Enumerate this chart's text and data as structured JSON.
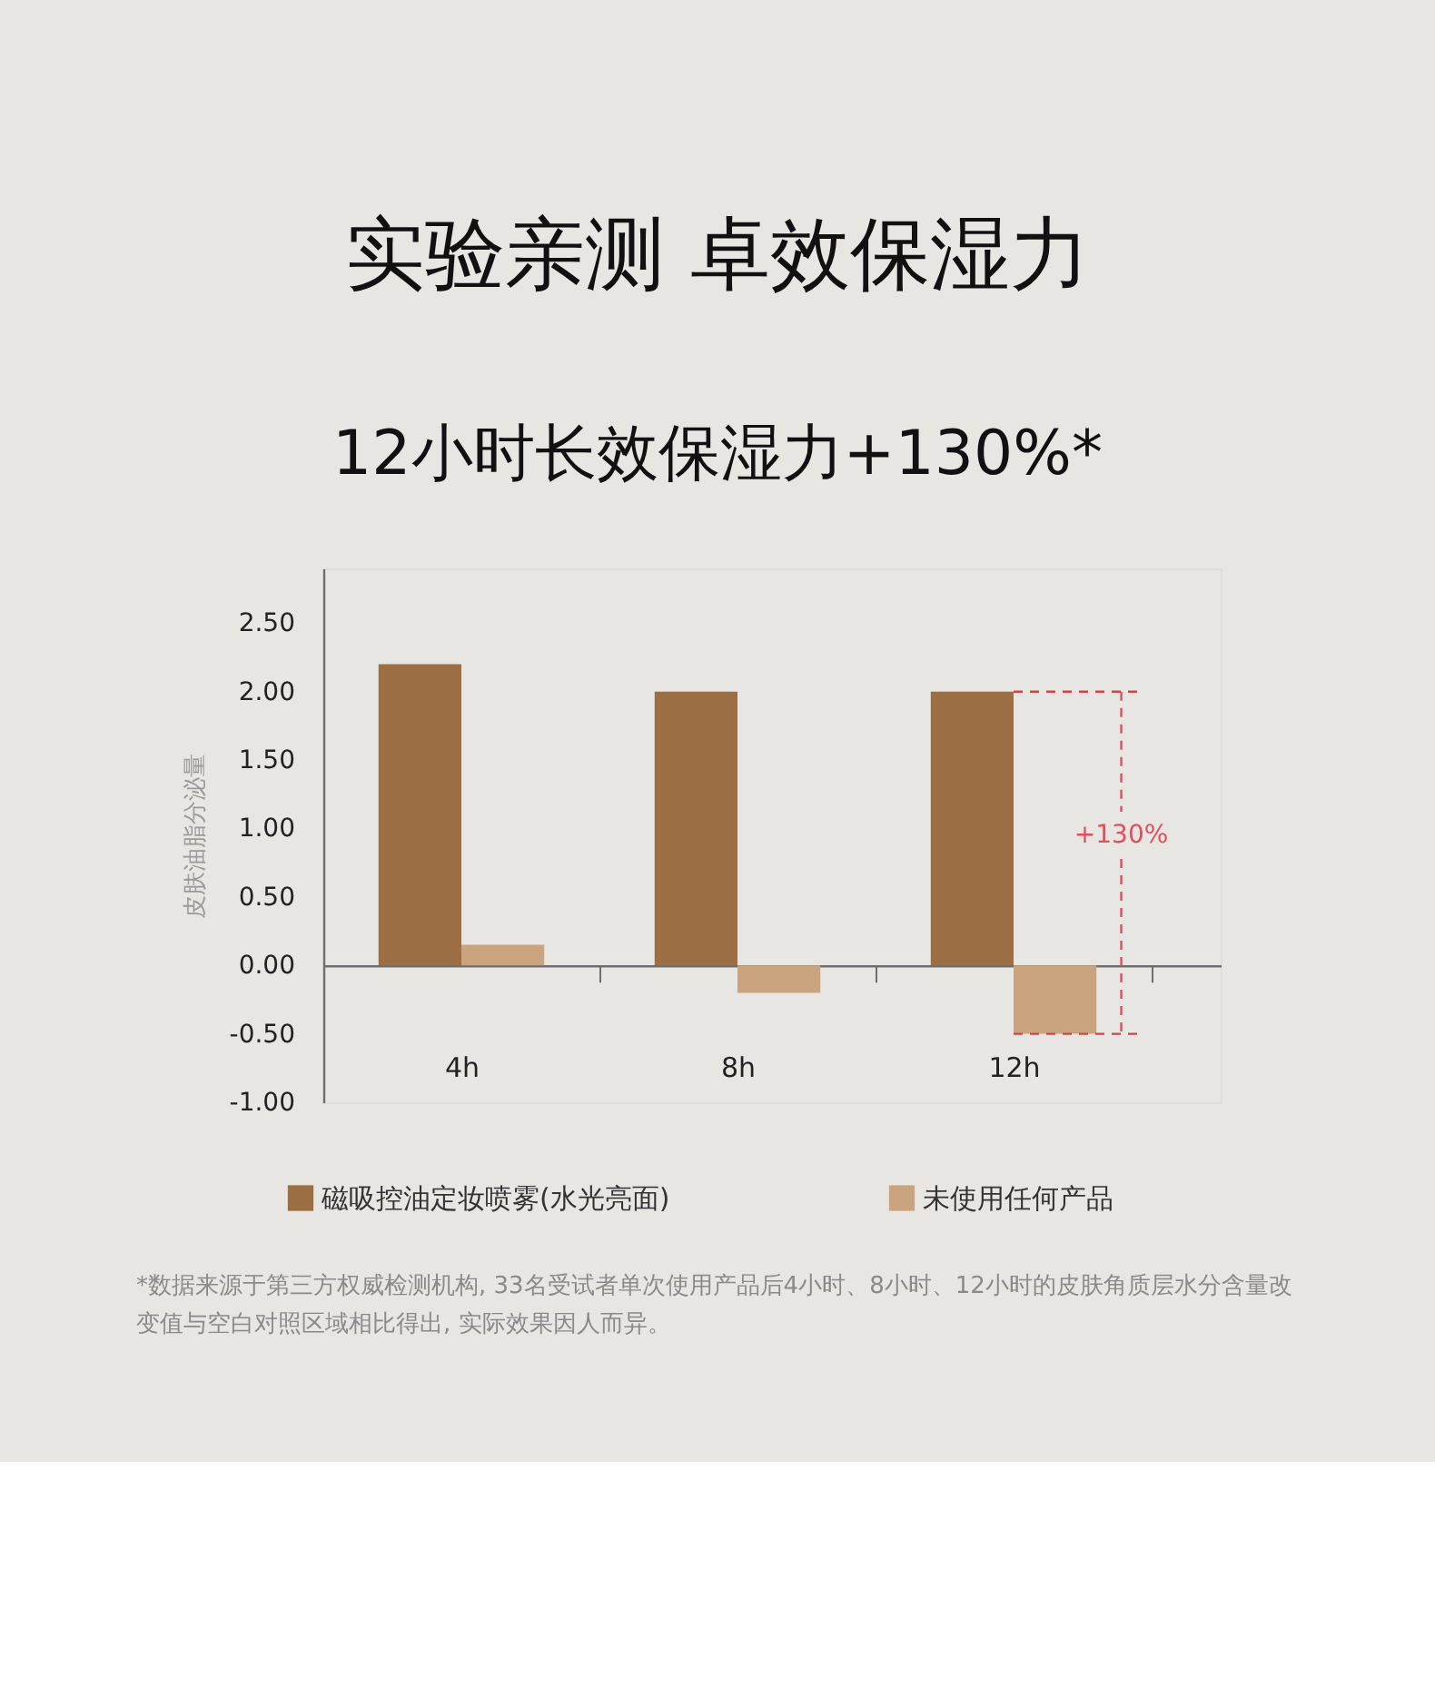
{
  "chart_data": {
    "type": "bar",
    "title": "实验亲测  卓效保湿力",
    "subtitle": "12小时长效保湿力+130%*",
    "ylabel": "皮肤油脂分泌量",
    "categories": [
      "4h",
      "8h",
      "12h"
    ],
    "series": [
      {
        "name": "磁吸控油定妆喷雾(水光亮面)",
        "color": "#9b6e44",
        "values": [
          2.2,
          2.0,
          2.0
        ]
      },
      {
        "name": "未使用任何产品",
        "color": "#caa47e",
        "values": [
          0.15,
          -0.2,
          -0.5
        ]
      }
    ],
    "ylim": [
      -1.0,
      2.9
    ],
    "yticks": [
      {
        "value": -1.0,
        "label": "-1.00"
      },
      {
        "value": -0.5,
        "label": "-0.50"
      },
      {
        "value": 0,
        "label": "0.00"
      },
      {
        "value": 0.5,
        "label": "0.50"
      },
      {
        "value": 1.0,
        "label": "1.00"
      },
      {
        "value": 1.5,
        "label": "1.50"
      },
      {
        "value": 2.0,
        "label": "2.00"
      },
      {
        "value": 2.5,
        "label": "2.50"
      }
    ],
    "ref_lines": [
      {
        "axis": "y",
        "value": 2.0,
        "color": "#d8404c",
        "line_style": "dashed"
      },
      {
        "axis": "y",
        "value": -0.5,
        "color": "#d8404c",
        "line_style": "dashed"
      }
    ],
    "annotations": [
      {
        "text": "+130%",
        "x": "12h",
        "y": 0.95
      },
      "*数据来源于第三方权威检测机构, 33名受试者单次使用产品后4小时、8小时、12小时的皮肤角质层水分含量改变值与空白对照区域相比得出, 实际效果因人而异。"
    ],
    "legend": "bottom"
  }
}
